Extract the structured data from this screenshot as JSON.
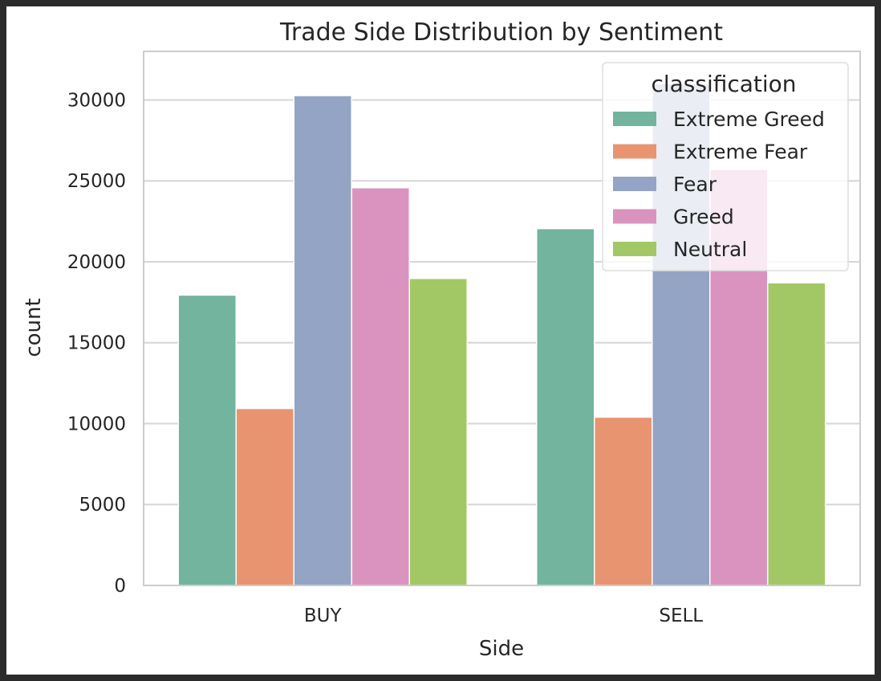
{
  "chart_data": {
    "type": "bar",
    "title": "Trade Side Distribution by Sentiment",
    "xlabel": "Side",
    "ylabel": "count",
    "categories": [
      "BUY",
      "SELL"
    ],
    "ylim": [
      0,
      33000
    ],
    "yticks": [
      0,
      5000,
      10000,
      15000,
      20000,
      25000,
      30000
    ],
    "grid": true,
    "legend": {
      "title": "classification",
      "placement": "top-right"
    },
    "series": [
      {
        "name": "Extreme Greed",
        "color": "#72b49e",
        "values": [
          17940,
          22050
        ]
      },
      {
        "name": "Extreme Fear",
        "color": "#e89471",
        "values": [
          10935,
          10400
        ]
      },
      {
        "name": "Fear",
        "color": "#94a4c4",
        "values": [
          30270,
          31000
        ]
      },
      {
        "name": "Greed",
        "color": "#da93be",
        "values": [
          24576,
          25700
        ]
      },
      {
        "name": "Neutral",
        "color": "#a2c865",
        "values": [
          18969,
          18700
        ]
      }
    ]
  }
}
